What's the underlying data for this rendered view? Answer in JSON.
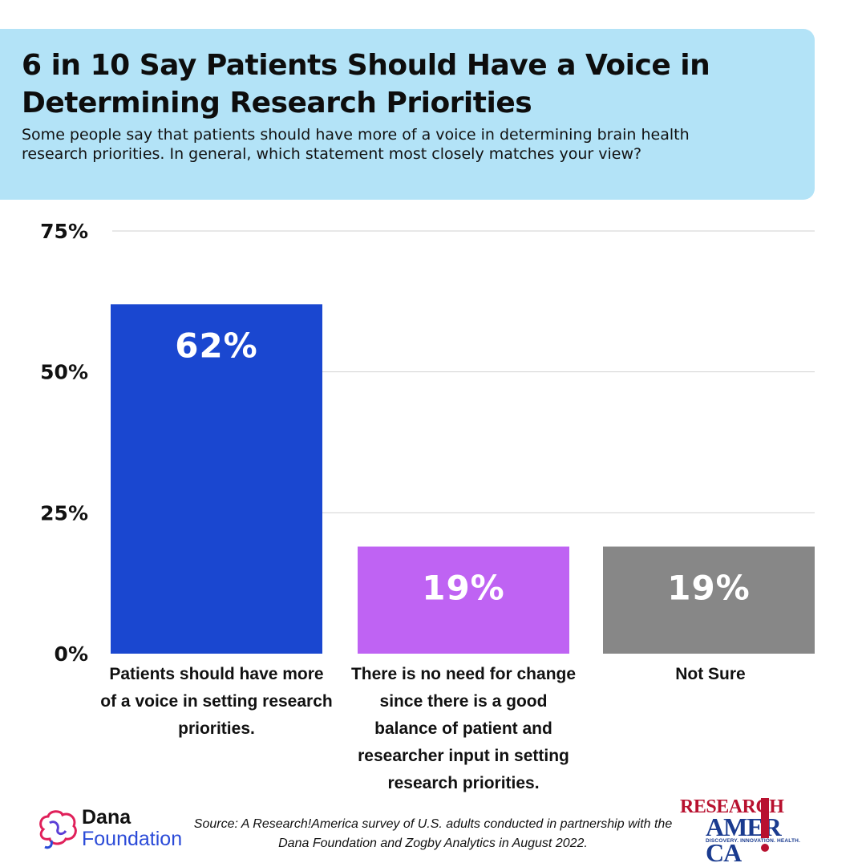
{
  "header": {
    "title": "6 in 10 Say Patients Should Have a Voice in Determining Research Priorities",
    "subtitle": "Some people say that patients should have more of a voice in determining brain health research priorities. In general, which statement most closely matches your view?"
  },
  "chart_data": {
    "type": "bar",
    "categories": [
      "Patients should have more of a voice in setting research priorities.",
      "There is no need for change since there is a good balance of patient and researcher input in setting research priorities.",
      "Not Sure"
    ],
    "values": [
      62,
      19,
      19
    ],
    "value_labels": [
      "62%",
      "19%",
      "19%"
    ],
    "colors": [
      "#1a47d0",
      "#bf63f3",
      "#878787"
    ],
    "ylim": [
      0,
      75
    ],
    "yticks": [
      0,
      25,
      50,
      75
    ],
    "ytick_labels": [
      "0%",
      "25%",
      "50%",
      "75%"
    ],
    "grid": true,
    "legend": "none"
  },
  "footer": {
    "source": "Source: A Research!America survey of U.S. adults conducted in partnership with the Dana Foundation and Zogby Analytics in August 2022.",
    "dana_logo": {
      "line1": "Dana",
      "line2": "Foundation",
      "icon": "brain-icon"
    },
    "ra_logo": {
      "line1": "RESEARCH",
      "line2": "AMER CA",
      "tagline": "DISCOVERY. INNOVATION. HEALTH.",
      "icon": "exclamation-icon"
    }
  }
}
